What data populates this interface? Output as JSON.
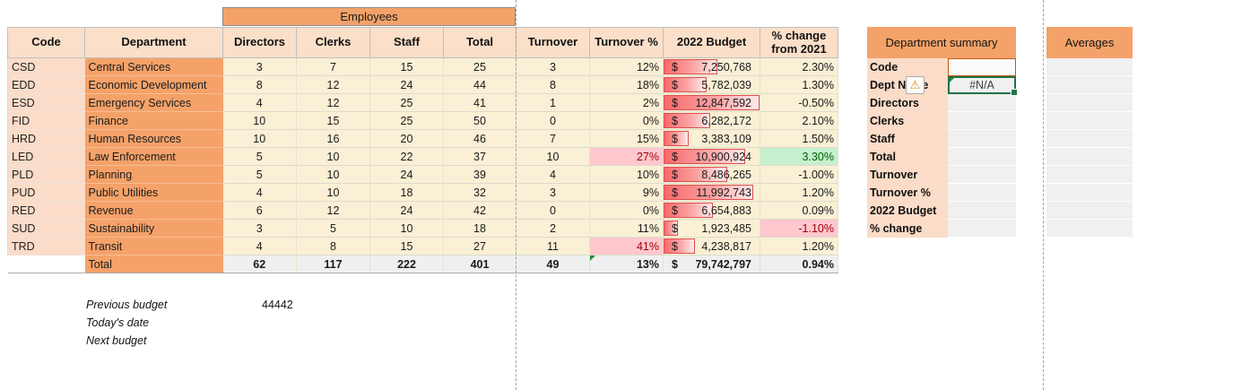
{
  "colors": {
    "accent_orange": "#F4A269",
    "peach": "#FBDCC8",
    "header_peach": "#FBDFC9",
    "cream_cell": "#FAF0D5",
    "total_gray": "#EFEFEF",
    "panel_value_gray": "#F0F0F0",
    "bad_bg": "#FFC7CE",
    "bad_text": "#9C0006",
    "good_bg": "#C6EFCE",
    "good_text": "#006100",
    "databar_red": "#F8696B",
    "databar_border": "#DD5050",
    "selection_green": "#217346",
    "code_cell_border": "#C05A11",
    "total_top_border": "#E8700A"
  },
  "icons": {
    "warning": "⚠"
  },
  "table": {
    "group_header": "Employees",
    "columns": [
      "Code",
      "Department",
      "Directors",
      "Clerks",
      "Staff",
      "Total",
      "Turnover",
      "Turnover %",
      "2022 Budget",
      "% change from 2021"
    ],
    "budget_max": 12847592,
    "currency_symbol": "$",
    "rows": [
      {
        "code": "CSD",
        "dept": "Central Services",
        "directors": "3",
        "clerks": "7",
        "staff": "15",
        "total": "25",
        "turnover": "3",
        "turnover_pct": "12%",
        "budget": "7,250,768",
        "budget_value": 7250768,
        "change": "2.30%",
        "turnover_state": null,
        "change_state": null
      },
      {
        "code": "EDD",
        "dept": "Economic Development",
        "directors": "8",
        "clerks": "12",
        "staff": "24",
        "total": "44",
        "turnover": "8",
        "turnover_pct": "18%",
        "budget": "5,782,039",
        "budget_value": 5782039,
        "change": "1.30%",
        "turnover_state": null,
        "change_state": null
      },
      {
        "code": "ESD",
        "dept": "Emergency Services",
        "directors": "4",
        "clerks": "12",
        "staff": "25",
        "total": "41",
        "turnover": "1",
        "turnover_pct": "2%",
        "budget": "12,847,592",
        "budget_value": 12847592,
        "change": "-0.50%",
        "turnover_state": null,
        "change_state": null
      },
      {
        "code": "FID",
        "dept": "Finance",
        "directors": "10",
        "clerks": "15",
        "staff": "25",
        "total": "50",
        "turnover": "0",
        "turnover_pct": "0%",
        "budget": "6,282,172",
        "budget_value": 6282172,
        "change": "2.10%",
        "turnover_state": null,
        "change_state": null
      },
      {
        "code": "HRD",
        "dept": "Human Resources",
        "directors": "10",
        "clerks": "16",
        "staff": "20",
        "total": "46",
        "turnover": "7",
        "turnover_pct": "15%",
        "budget": "3,383,109",
        "budget_value": 3383109,
        "change": "1.50%",
        "turnover_state": null,
        "change_state": null
      },
      {
        "code": "LED",
        "dept": "Law Enforcement",
        "directors": "5",
        "clerks": "10",
        "staff": "22",
        "total": "37",
        "turnover": "10",
        "turnover_pct": "27%",
        "budget": "10,900,924",
        "budget_value": 10900924,
        "change": "3.30%",
        "turnover_state": "bad",
        "change_state": "good"
      },
      {
        "code": "PLD",
        "dept": "Planning",
        "directors": "5",
        "clerks": "10",
        "staff": "24",
        "total": "39",
        "turnover": "4",
        "turnover_pct": "10%",
        "budget": "8,486,265",
        "budget_value": 8486265,
        "change": "-1.00%",
        "turnover_state": null,
        "change_state": null
      },
      {
        "code": "PUD",
        "dept": "Public Utilities",
        "directors": "4",
        "clerks": "10",
        "staff": "18",
        "total": "32",
        "turnover": "3",
        "turnover_pct": "9%",
        "budget": "11,992,743",
        "budget_value": 11992743,
        "change": "1.20%",
        "turnover_state": null,
        "change_state": null
      },
      {
        "code": "RED",
        "dept": "Revenue",
        "directors": "6",
        "clerks": "12",
        "staff": "24",
        "total": "42",
        "turnover": "0",
        "turnover_pct": "0%",
        "budget": "6,654,883",
        "budget_value": 6654883,
        "change": "0.09%",
        "turnover_state": null,
        "change_state": null
      },
      {
        "code": "SUD",
        "dept": "Sustainability",
        "directors": "3",
        "clerks": "5",
        "staff": "10",
        "total": "18",
        "turnover": "2",
        "turnover_pct": "11%",
        "budget": "1,923,485",
        "budget_value": 1923485,
        "change": "-1.10%",
        "turnover_state": null,
        "change_state": "bad"
      },
      {
        "code": "TRD",
        "dept": "Transit",
        "directors": "4",
        "clerks": "8",
        "staff": "15",
        "total": "27",
        "turnover": "11",
        "turnover_pct": "41%",
        "budget": "4,238,817",
        "budget_value": 4238817,
        "change": "1.20%",
        "turnover_state": "bad",
        "change_state": null
      }
    ],
    "total_row": {
      "code": "",
      "dept": "Total",
      "directors": "62",
      "clerks": "117",
      "staff": "222",
      "total": "401",
      "turnover": "49",
      "turnover_pct": "13%",
      "budget": "79,742,797",
      "change": "0.94%"
    }
  },
  "summary": {
    "title": "Department summary",
    "rows": [
      {
        "label": "Code",
        "value": ""
      },
      {
        "label": "Dept Name",
        "value": "#N/A"
      },
      {
        "label": "Directors",
        "value": ""
      },
      {
        "label": "Clerks",
        "value": ""
      },
      {
        "label": "Staff",
        "value": ""
      },
      {
        "label": "Total",
        "value": ""
      },
      {
        "label": "Turnover",
        "value": ""
      },
      {
        "label": "Turnover %",
        "value": ""
      },
      {
        "label": "2022 Budget",
        "value": ""
      },
      {
        "label": "% change",
        "value": ""
      }
    ]
  },
  "averages": {
    "title": "Averages",
    "row_count": 10
  },
  "notes": {
    "rows": [
      {
        "label": "Previous budget",
        "value": "44442"
      },
      {
        "label": "Today's date",
        "value": ""
      },
      {
        "label": "Next budget",
        "value": ""
      }
    ]
  }
}
